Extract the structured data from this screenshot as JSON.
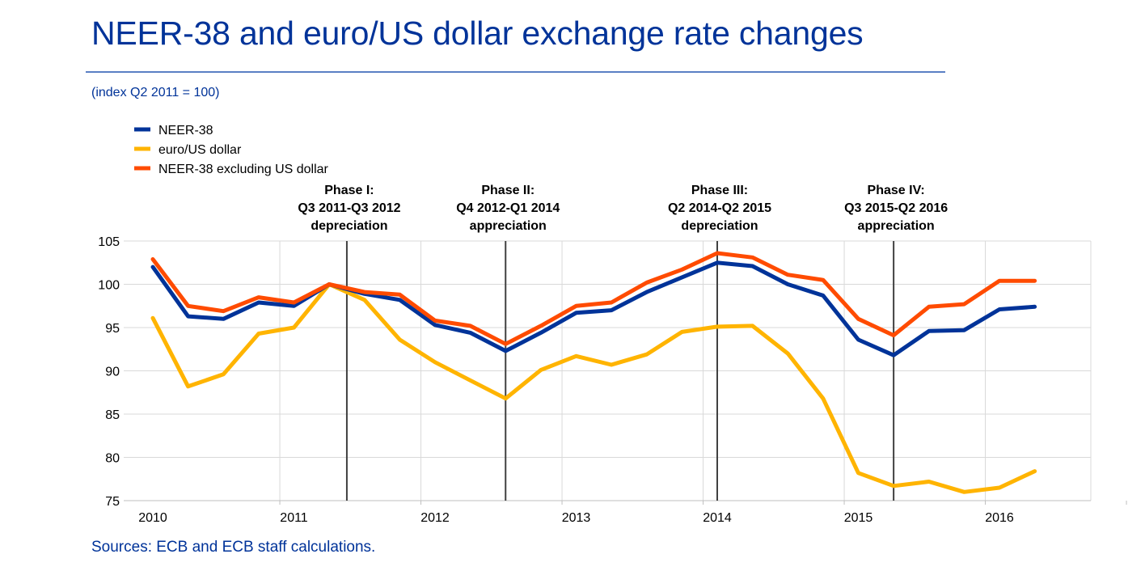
{
  "header": {
    "title": "NEER-38 and euro/US dollar exchange rate changes",
    "subtitle": "(index Q2 2011 = 100)"
  },
  "footer": {
    "source": "Sources: ECB and ECB staff calculations."
  },
  "colors": {
    "neer38": "#003399",
    "eurusd": "#ffb400",
    "neer38_ex_usd": "#ff4b00",
    "grid": "#d9d9d9",
    "phase_line": "#404040"
  },
  "chart_data": {
    "type": "line",
    "title": "NEER-38 and euro/US dollar exchange rate changes",
    "ylabel": "(index Q2 2011 = 100)",
    "xlabel": "",
    "ylim": [
      75,
      105
    ],
    "xlim": [
      2010,
      2016.75
    ],
    "y_ticks": [
      105,
      100,
      95,
      90,
      85,
      80,
      75
    ],
    "x_ticks": [
      {
        "value": 2010,
        "label": "2010"
      },
      {
        "value": 2011,
        "label": "2011"
      },
      {
        "value": 2012,
        "label": "2012"
      },
      {
        "value": 2013,
        "label": "2013"
      },
      {
        "value": 2014,
        "label": "2014"
      },
      {
        "value": 2015,
        "label": "2015"
      },
      {
        "value": 2016,
        "label": "2016"
      }
    ],
    "grid": true,
    "legend_position": "top-left",
    "x": [
      2010.0,
      2010.25,
      2010.5,
      2010.75,
      2011.0,
      2011.25,
      2011.5,
      2011.75,
      2012.0,
      2012.25,
      2012.5,
      2012.75,
      2013.0,
      2013.25,
      2013.5,
      2013.75,
      2014.0,
      2014.25,
      2014.5,
      2014.75,
      2015.0,
      2015.25,
      2015.5,
      2015.75,
      2016.0,
      2016.25
    ],
    "series": [
      {
        "name": "NEER-38",
        "color_key": "neer38",
        "values": [
          102.0,
          96.3,
          96.0,
          97.9,
          97.5,
          100.0,
          98.9,
          98.2,
          95.3,
          94.4,
          92.3,
          94.4,
          96.7,
          97.0,
          99.1,
          100.8,
          102.5,
          102.1,
          100.0,
          98.7,
          93.6,
          91.8,
          94.6,
          94.7,
          97.1,
          97.4
        ]
      },
      {
        "name": "euro/US dollar",
        "color_key": "eurusd",
        "values": [
          96.1,
          88.2,
          89.6,
          94.3,
          95.0,
          100.0,
          98.2,
          93.6,
          91.0,
          88.9,
          86.8,
          90.1,
          91.7,
          90.7,
          91.9,
          94.5,
          95.1,
          95.2,
          92.0,
          86.8,
          78.2,
          76.7,
          77.2,
          76.0,
          76.5,
          78.4
        ]
      },
      {
        "name": "NEER-38 excluding US dollar",
        "color_key": "neer38_ex_usd",
        "values": [
          102.9,
          97.5,
          96.9,
          98.5,
          97.9,
          100.0,
          99.1,
          98.8,
          95.8,
          95.2,
          93.1,
          95.2,
          97.5,
          97.9,
          100.2,
          101.7,
          103.6,
          103.1,
          101.1,
          100.5,
          96.0,
          94.1,
          97.4,
          97.7,
          100.4,
          100.4
        ]
      }
    ],
    "phases": [
      {
        "x": 2011.375,
        "lines": [
          "Phase I:",
          "Q3 2011-Q3 2012",
          "depreciation"
        ]
      },
      {
        "x": 2012.5,
        "lines": [
          "Phase II:",
          "Q4 2012-Q1 2014",
          "appreciation"
        ]
      },
      {
        "x": 2014.0,
        "lines": [
          "Phase III:",
          "Q2 2014-Q2 2015",
          "depreciation"
        ]
      },
      {
        "x": 2015.25,
        "lines": [
          "Phase IV:",
          "Q3 2015-Q2 2016",
          "appreciation"
        ]
      }
    ]
  }
}
